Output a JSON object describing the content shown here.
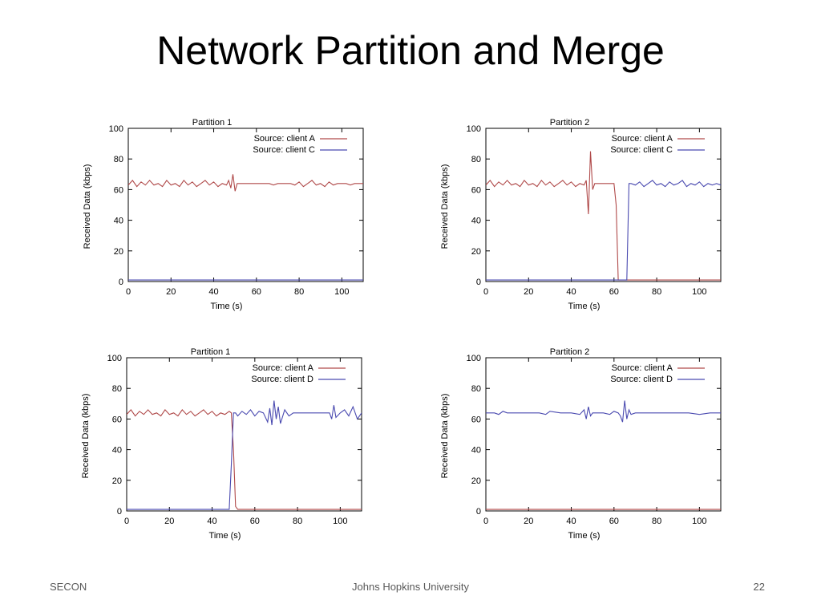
{
  "slide": {
    "title": "Network Partition and Merge",
    "footer_left": "SECON",
    "footer_center": "Johns Hopkins University",
    "footer_right": "22"
  },
  "colors": {
    "client_a": "#b04a4a",
    "client_other": "#4a4ab0",
    "axis": "#000000"
  },
  "chart_data": [
    {
      "type": "line",
      "title": "Partition 1",
      "xlabel": "Time (s)",
      "ylabel": "Received Data (kbps)",
      "xlim": [
        0,
        110
      ],
      "ylim": [
        0,
        100
      ],
      "xticks": [
        0,
        20,
        40,
        60,
        80,
        100
      ],
      "yticks": [
        0,
        20,
        40,
        60,
        80,
        100
      ],
      "legend": "top-right",
      "series": [
        {
          "name": "Source: client A",
          "color": "#b04a4a",
          "x": [
            0,
            2,
            4,
            6,
            8,
            10,
            12,
            14,
            16,
            18,
            20,
            22,
            24,
            26,
            28,
            30,
            32,
            34,
            36,
            38,
            40,
            42,
            44,
            46,
            47,
            48,
            49,
            50,
            51,
            52,
            54,
            56,
            58,
            60,
            62,
            64,
            66,
            68,
            70,
            72,
            74,
            76,
            78,
            80,
            82,
            84,
            86,
            88,
            90,
            92,
            94,
            96,
            98,
            100,
            102,
            104,
            106,
            108,
            110
          ],
          "y": [
            63,
            66,
            62,
            65,
            63,
            66,
            63,
            64,
            62,
            66,
            63,
            64,
            62,
            66,
            63,
            65,
            62,
            64,
            66,
            63,
            65,
            62,
            64,
            63,
            66,
            61,
            70,
            59,
            64,
            64,
            64,
            64,
            64,
            64,
            64,
            64,
            64,
            63,
            64,
            64,
            64,
            64,
            63,
            65,
            62,
            64,
            66,
            63,
            64,
            62,
            65,
            63,
            64,
            64,
            64,
            63,
            64,
            64,
            64
          ]
        },
        {
          "name": "Source: client C",
          "color": "#4a4ab0",
          "x": [
            0,
            110
          ],
          "y": [
            1,
            1
          ]
        }
      ]
    },
    {
      "type": "line",
      "title": "Partition 2",
      "xlabel": "Time (s)",
      "ylabel": "Received Data (kbps)",
      "xlim": [
        0,
        110
      ],
      "ylim": [
        0,
        100
      ],
      "xticks": [
        0,
        20,
        40,
        60,
        80,
        100
      ],
      "yticks": [
        0,
        20,
        40,
        60,
        80,
        100
      ],
      "legend": "top-right",
      "series": [
        {
          "name": "Source: client A",
          "color": "#b04a4a",
          "x": [
            0,
            2,
            4,
            6,
            8,
            10,
            12,
            14,
            16,
            18,
            20,
            22,
            24,
            26,
            28,
            30,
            32,
            34,
            36,
            38,
            40,
            42,
            44,
            46,
            47,
            48,
            49,
            50,
            51,
            52,
            54,
            56,
            58,
            60,
            61,
            62,
            63,
            64,
            66,
            68,
            70,
            80,
            90,
            100,
            110
          ],
          "y": [
            63,
            66,
            62,
            65,
            63,
            66,
            63,
            64,
            62,
            66,
            63,
            64,
            62,
            66,
            63,
            65,
            62,
            64,
            66,
            63,
            65,
            62,
            64,
            63,
            66,
            44,
            85,
            60,
            64,
            64,
            64,
            64,
            64,
            64,
            50,
            1,
            1,
            1,
            1,
            1,
            1,
            1,
            1,
            1,
            1
          ]
        },
        {
          "name": "Source: client C",
          "color": "#4a4ab0",
          "x": [
            0,
            62,
            63,
            64,
            65,
            66,
            67,
            68,
            70,
            72,
            74,
            76,
            78,
            80,
            82,
            84,
            86,
            88,
            90,
            92,
            94,
            96,
            98,
            100,
            102,
            104,
            106,
            108,
            110
          ],
          "y": [
            1,
            1,
            1,
            1,
            1,
            1,
            64,
            64,
            63,
            65,
            62,
            64,
            66,
            63,
            64,
            62,
            65,
            63,
            64,
            66,
            62,
            64,
            63,
            65,
            62,
            64,
            63,
            64,
            63
          ]
        }
      ]
    },
    {
      "type": "line",
      "title": "Partition 1",
      "xlabel": "Time (s)",
      "ylabel": "Received Data (kbps)",
      "xlim": [
        0,
        110
      ],
      "ylim": [
        0,
        100
      ],
      "xticks": [
        0,
        20,
        40,
        60,
        80,
        100
      ],
      "yticks": [
        0,
        20,
        40,
        60,
        80,
        100
      ],
      "legend": "top-right",
      "series": [
        {
          "name": "Source: client A",
          "color": "#b04a4a",
          "x": [
            0,
            2,
            4,
            6,
            8,
            10,
            12,
            14,
            16,
            18,
            20,
            22,
            24,
            26,
            28,
            30,
            32,
            34,
            36,
            38,
            40,
            42,
            44,
            46,
            48,
            49,
            50,
            51,
            52,
            54,
            60,
            70,
            80,
            90,
            100,
            110
          ],
          "y": [
            63,
            66,
            62,
            65,
            63,
            66,
            63,
            64,
            62,
            66,
            63,
            64,
            62,
            66,
            63,
            65,
            62,
            64,
            66,
            63,
            65,
            62,
            64,
            63,
            65,
            64,
            40,
            3,
            1,
            1,
            1,
            1,
            1,
            1,
            1,
            1
          ]
        },
        {
          "name": "Source: client D",
          "color": "#4a4ab0",
          "x": [
            0,
            48,
            49,
            50,
            51,
            52,
            54,
            56,
            58,
            60,
            62,
            64,
            66,
            67,
            68,
            69,
            70,
            71,
            72,
            74,
            76,
            78,
            80,
            85,
            90,
            95,
            96,
            97,
            98,
            100,
            102,
            104,
            106,
            108,
            110
          ],
          "y": [
            1,
            1,
            30,
            64,
            64,
            62,
            65,
            63,
            66,
            62,
            65,
            64,
            58,
            67,
            56,
            72,
            60,
            68,
            57,
            66,
            62,
            64,
            64,
            64,
            64,
            64,
            60,
            69,
            61,
            64,
            66,
            62,
            68,
            60,
            64
          ]
        }
      ]
    },
    {
      "type": "line",
      "title": "Partition 2",
      "xlabel": "Time (s)",
      "ylabel": "Received Data (kbps)",
      "xlim": [
        0,
        110
      ],
      "ylim": [
        0,
        100
      ],
      "xticks": [
        0,
        20,
        40,
        60,
        80,
        100
      ],
      "yticks": [
        0,
        20,
        40,
        60,
        80,
        100
      ],
      "legend": "top-right",
      "series": [
        {
          "name": "Source: client A",
          "color": "#b04a4a",
          "x": [
            0,
            110
          ],
          "y": [
            1,
            1
          ]
        },
        {
          "name": "Source: client D",
          "color": "#4a4ab0",
          "x": [
            0,
            4,
            6,
            8,
            10,
            15,
            20,
            25,
            28,
            30,
            35,
            40,
            44,
            46,
            47,
            48,
            49,
            50,
            55,
            58,
            60,
            62,
            63,
            64,
            65,
            66,
            67,
            68,
            70,
            75,
            80,
            85,
            90,
            95,
            100,
            105,
            110
          ],
          "y": [
            64,
            64,
            63,
            65,
            64,
            64,
            64,
            64,
            63,
            65,
            64,
            64,
            63,
            66,
            60,
            68,
            62,
            64,
            64,
            63,
            65,
            64,
            62,
            58,
            72,
            60,
            66,
            63,
            64,
            64,
            64,
            64,
            64,
            64,
            63,
            64,
            64
          ]
        }
      ]
    }
  ]
}
